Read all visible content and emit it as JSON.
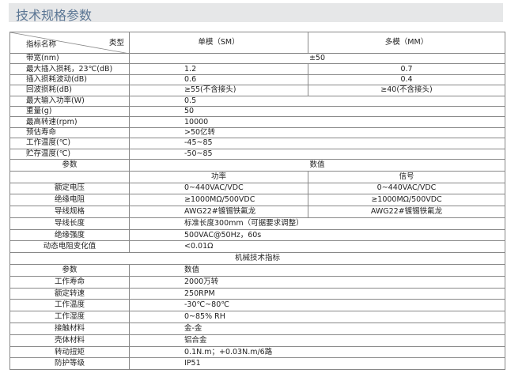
{
  "title": "技术规格参数",
  "header": {
    "type_label": "类型",
    "name_label": "指标名称",
    "sm": "单模（SM）",
    "mm": "多模（MM）"
  },
  "bandwidth": {
    "label": "带宽(nm)",
    "value": "±50"
  },
  "rows_split": [
    {
      "label": "最大插入损耗，23℃(dB)",
      "sm": "1.2",
      "mm": "0.7"
    },
    {
      "label": "插入损耗波动(dB)",
      "sm": "0.6",
      "mm": "0.4"
    },
    {
      "label": "回波损耗(dB)",
      "sm": "≥55(不含接头)",
      "mm": "≥40(不含接头)"
    }
  ],
  "rows_single": [
    {
      "label": "最大输入功率(W)",
      "value": "0.5"
    },
    {
      "label": "重量(g)",
      "value": "50"
    },
    {
      "label": "最高转速(rpm)",
      "value": "10000"
    },
    {
      "label": "预估寿命",
      "value": ">50亿转"
    },
    {
      "label": "工作温度(℃)",
      "value": "-45~85"
    },
    {
      "label": "贮存温度(℃)",
      "value": "-50~85"
    }
  ],
  "electrical": {
    "param": "参数",
    "value": "数值",
    "power": "功率",
    "signal": "信号",
    "rows_split": [
      {
        "label": "额定电压",
        "power": "0~440VAC/VDC",
        "signal": "0~440VAC/VDC"
      },
      {
        "label": "绝缘电阻",
        "power": "≥1000MΩ/500VDC",
        "signal": "≥1000MΩ/500VDC"
      },
      {
        "label": "导线规格",
        "power": "AWG22#镀锡铁氟龙",
        "signal": "AWG22#镀锡铁氟龙"
      }
    ],
    "rows_single": [
      {
        "label": "导线长度",
        "value": "标准长度300mm（可据要求调整）"
      },
      {
        "label": "绝缘强度",
        "value": "500VAC@50Hz，60s"
      },
      {
        "label": "动态电阻变化值",
        "value": "<0.01Ω"
      }
    ]
  },
  "mechanical": {
    "title": "机械技术指标",
    "param": "参数",
    "value": "数值",
    "rows": [
      {
        "label": "工作寿命",
        "value": "2000万转"
      },
      {
        "label": "额定转速",
        "value": "250RPM"
      },
      {
        "label": "工作温度",
        "value": "-30℃~80℃"
      },
      {
        "label": "工作湿度",
        "value": "0~85% RH"
      },
      {
        "label": "接触材料",
        "value": "金-金"
      },
      {
        "label": "壳体材料",
        "value": "铝合金"
      },
      {
        "label": "转动扭矩",
        "value": "0.1N.m；+0.03N.m/6路"
      },
      {
        "label": "防护等级",
        "value": "IP51"
      }
    ]
  }
}
